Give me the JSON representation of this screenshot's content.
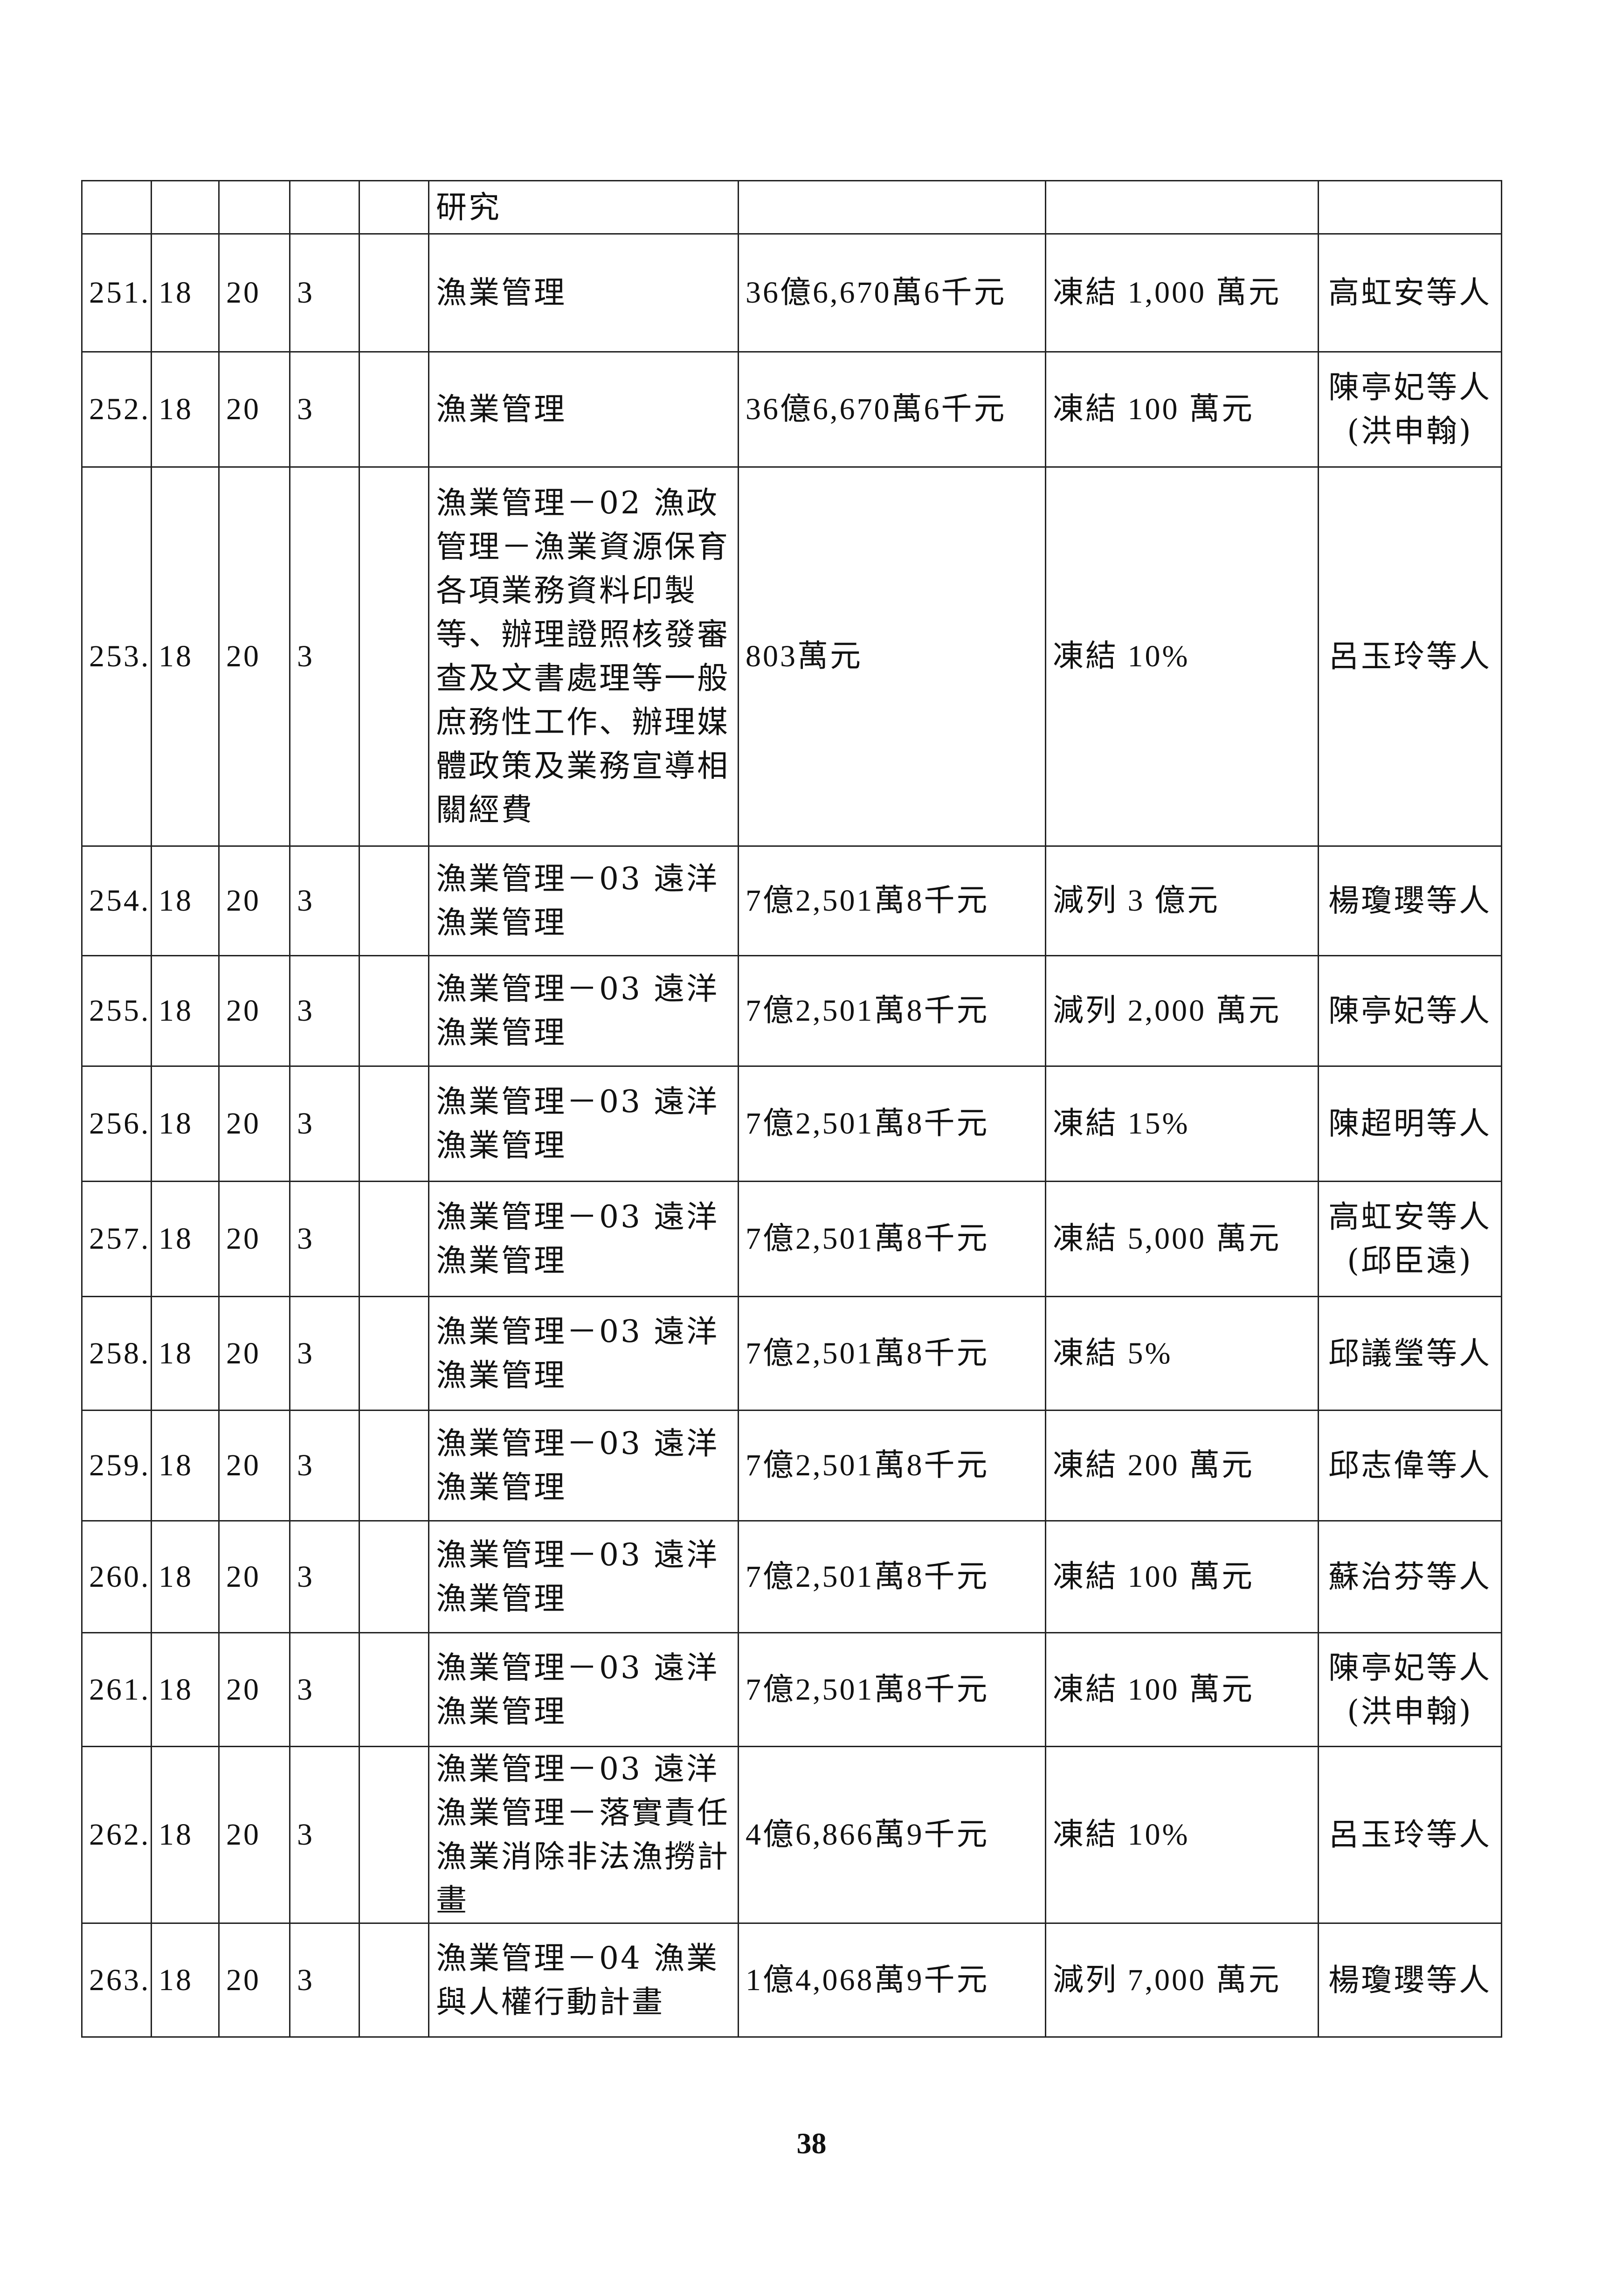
{
  "continued_row": {
    "item": "研究"
  },
  "rows": [
    {
      "no": "251.",
      "c1": "18",
      "c2": "20",
      "c3": "3",
      "c4": "",
      "item": "漁業管理",
      "amount": "36億6,670萬6千元",
      "action": "凍結 1,000 萬元",
      "proposer": "高虹安等人"
    },
    {
      "no": "252.",
      "c1": "18",
      "c2": "20",
      "c3": "3",
      "c4": "",
      "item": "漁業管理",
      "amount": "36億6,670萬6千元",
      "action": "凍結 100 萬元",
      "proposer": "陳亭妃等人(洪申翰)"
    },
    {
      "no": "253.",
      "c1": "18",
      "c2": "20",
      "c3": "3",
      "c4": "",
      "item": "漁業管理－02 漁政管理－漁業資源保育各項業務資料印製等、辦理證照核發審查及文書處理等一般庶務性工作、辦理媒體政策及業務宣導相關經費",
      "amount": "803萬元",
      "action": "凍結 10%",
      "proposer": "呂玉玲等人"
    },
    {
      "no": "254.",
      "c1": "18",
      "c2": "20",
      "c3": "3",
      "c4": "",
      "item": "漁業管理－03 遠洋漁業管理",
      "amount": "7億2,501萬8千元",
      "action": "減列 3 億元",
      "proposer": "楊瓊瓔等人"
    },
    {
      "no": "255.",
      "c1": "18",
      "c2": "20",
      "c3": "3",
      "c4": "",
      "item": "漁業管理－03 遠洋漁業管理",
      "amount": "7億2,501萬8千元",
      "action": "減列 2,000 萬元",
      "proposer": "陳亭妃等人"
    },
    {
      "no": "256.",
      "c1": "18",
      "c2": "20",
      "c3": "3",
      "c4": "",
      "item": "漁業管理－03 遠洋漁業管理",
      "amount": "7億2,501萬8千元",
      "action": "凍結 15%",
      "proposer": "陳超明等人"
    },
    {
      "no": "257.",
      "c1": "18",
      "c2": "20",
      "c3": "3",
      "c4": "",
      "item": "漁業管理－03 遠洋漁業管理",
      "amount": "7億2,501萬8千元",
      "action": "凍結 5,000 萬元",
      "proposer": "高虹安等人(邱臣遠)"
    },
    {
      "no": "258.",
      "c1": "18",
      "c2": "20",
      "c3": "3",
      "c4": "",
      "item": "漁業管理－03 遠洋漁業管理",
      "amount": "7億2,501萬8千元",
      "action": "凍結 5%",
      "proposer": "邱議瑩等人"
    },
    {
      "no": "259.",
      "c1": "18",
      "c2": "20",
      "c3": "3",
      "c4": "",
      "item": "漁業管理－03 遠洋漁業管理",
      "amount": "7億2,501萬8千元",
      "action": "凍結 200 萬元",
      "proposer": "邱志偉等人"
    },
    {
      "no": "260.",
      "c1": "18",
      "c2": "20",
      "c3": "3",
      "c4": "",
      "item": "漁業管理－03 遠洋漁業管理",
      "amount": "7億2,501萬8千元",
      "action": "凍結 100 萬元",
      "proposer": "蘇治芬等人"
    },
    {
      "no": "261.",
      "c1": "18",
      "c2": "20",
      "c3": "3",
      "c4": "",
      "item": "漁業管理－03 遠洋漁業管理",
      "amount": "7億2,501萬8千元",
      "action": "凍結 100 萬元",
      "proposer": "陳亭妃等人(洪申翰)"
    },
    {
      "no": "262.",
      "c1": "18",
      "c2": "20",
      "c3": "3",
      "c4": "",
      "item": "漁業管理－03 遠洋漁業管理－落實責任漁業消除非法漁撈計畫",
      "amount": "4億6,866萬9千元",
      "action": "凍結 10%",
      "proposer": "呂玉玲等人"
    },
    {
      "no": "263.",
      "c1": "18",
      "c2": "20",
      "c3": "3",
      "c4": "",
      "item": "漁業管理－04 漁業與人權行動計畫",
      "amount": "1億4,068萬9千元",
      "action": "減列 7,000 萬元",
      "proposer": "楊瓊瓔等人"
    }
  ],
  "page_number": "38"
}
